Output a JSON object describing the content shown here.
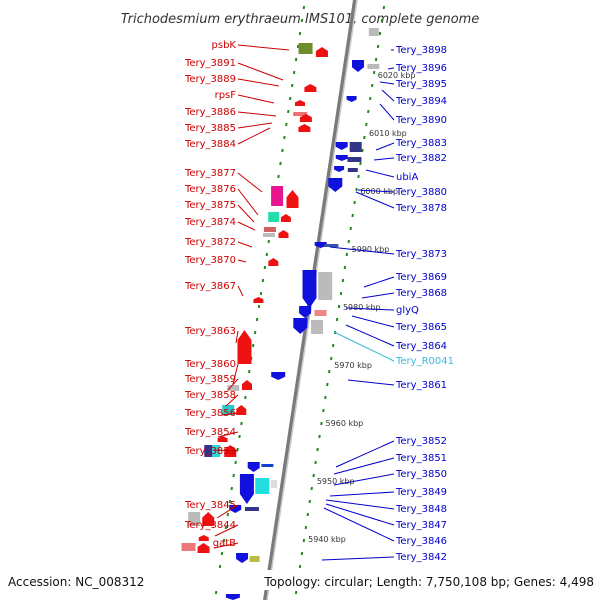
{
  "title": "Trichodesmium erythraeum IMS101, complete genome",
  "footer": {
    "accession": "Accession: NC_008312",
    "summary": "Topology: circular; Length: 7,750,108 bp; Genes: 4,498"
  },
  "colors": {
    "forward_label": "#cc0000",
    "reverse_label": "#0000cc",
    "rna_label": "#33bbdd",
    "backbone": "#888888",
    "tick": "#228822"
  },
  "kbp_marks": [
    {
      "label": "6020 kbp",
      "kbp": 6020
    },
    {
      "label": "6010 kbp",
      "kbp": 6010
    },
    {
      "label": "6000 kbp",
      "kbp": 6000
    },
    {
      "label": "5990 kbp",
      "kbp": 5990
    },
    {
      "label": "5980 kbp",
      "kbp": 5980
    },
    {
      "label": "5970 kbp",
      "kbp": 5970
    },
    {
      "label": "5960 kbp",
      "kbp": 5960
    },
    {
      "label": "5950 kbp",
      "kbp": 5950
    },
    {
      "label": "5940 kbp",
      "kbp": 5940
    }
  ],
  "forward_genes": [
    {
      "name": "psbK",
      "strand": "+"
    },
    {
      "name": "Tery_3891",
      "strand": "+"
    },
    {
      "name": "Tery_3889",
      "strand": "+"
    },
    {
      "name": "rpsF",
      "strand": "+"
    },
    {
      "name": "Tery_3886",
      "strand": "+"
    },
    {
      "name": "Tery_3885",
      "strand": "+"
    },
    {
      "name": "Tery_3884",
      "strand": "+"
    },
    {
      "name": "Tery_3877",
      "strand": "+"
    },
    {
      "name": "Tery_3876",
      "strand": "+"
    },
    {
      "name": "Tery_3875",
      "strand": "+"
    },
    {
      "name": "Tery_3874",
      "strand": "+"
    },
    {
      "name": "Tery_3872",
      "strand": "+"
    },
    {
      "name": "Tery_3870",
      "strand": "+"
    },
    {
      "name": "Tery_3867",
      "strand": "+"
    },
    {
      "name": "Tery_3863",
      "strand": "+"
    },
    {
      "name": "Tery_3860",
      "strand": "+"
    },
    {
      "name": "Tery_3859",
      "strand": "+"
    },
    {
      "name": "Tery_3858",
      "strand": "+"
    },
    {
      "name": "Tery_3856",
      "strand": "+"
    },
    {
      "name": "Tery_3854",
      "strand": "+"
    },
    {
      "name": "Tery_3853",
      "strand": "+"
    },
    {
      "name": "Tery_3845",
      "strand": "+"
    },
    {
      "name": "Tery_3844",
      "strand": "+"
    },
    {
      "name": "gatB",
      "strand": "+"
    }
  ],
  "reverse_genes": [
    {
      "name": "Tery_3898",
      "strand": "-"
    },
    {
      "name": "Tery_3896",
      "strand": "-"
    },
    {
      "name": "Tery_3895",
      "strand": "-"
    },
    {
      "name": "Tery_3894",
      "strand": "-"
    },
    {
      "name": "Tery_3890",
      "strand": "-"
    },
    {
      "name": "Tery_3883",
      "strand": "-"
    },
    {
      "name": "Tery_3882",
      "strand": "-"
    },
    {
      "name": "ubiA",
      "strand": "-"
    },
    {
      "name": "Tery_3880",
      "strand": "-"
    },
    {
      "name": "Tery_3878",
      "strand": "-"
    },
    {
      "name": "Tery_3873",
      "strand": "-"
    },
    {
      "name": "Tery_3869",
      "strand": "-"
    },
    {
      "name": "Tery_3868",
      "strand": "-"
    },
    {
      "name": "glyQ",
      "strand": "-"
    },
    {
      "name": "Tery_3865",
      "strand": "-"
    },
    {
      "name": "Tery_3864",
      "strand": "-"
    },
    {
      "name": "Tery_R0041",
      "strand": "-",
      "type": "rna"
    },
    {
      "name": "Tery_3861",
      "strand": "-"
    },
    {
      "name": "Tery_3852",
      "strand": "-"
    },
    {
      "name": "Tery_3851",
      "strand": "-"
    },
    {
      "name": "Tery_3850",
      "strand": "-"
    },
    {
      "name": "Tery_3849",
      "strand": "-"
    },
    {
      "name": "Tery_3848",
      "strand": "-"
    },
    {
      "name": "Tery_3847",
      "strand": "-"
    },
    {
      "name": "Tery_3846",
      "strand": "-"
    },
    {
      "name": "Tery_3842",
      "strand": "-"
    }
  ]
}
